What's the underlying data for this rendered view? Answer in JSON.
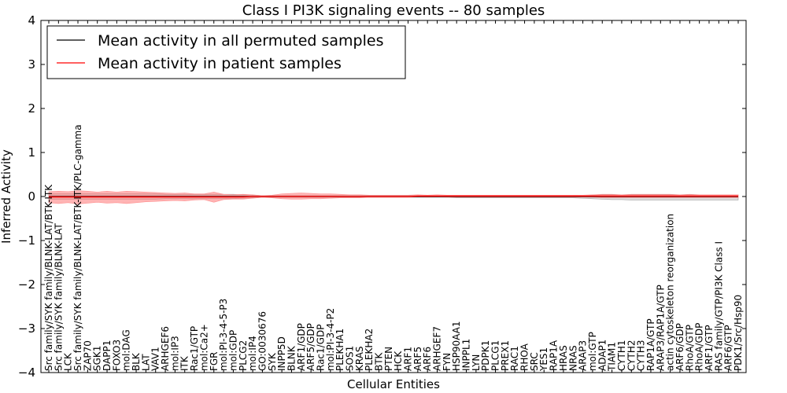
{
  "chart_data": {
    "type": "line",
    "title": "Class I PI3K signaling events -- 80 samples",
    "xlabel": "Cellular Entities",
    "ylabel": "Inferred Activity",
    "ylim": [
      -4,
      4
    ],
    "yticks": [
      -4,
      -3,
      -2,
      -1,
      0,
      1,
      2,
      3,
      4
    ],
    "ytick_labels": [
      "−4",
      "−3",
      "−2",
      "−1",
      "0",
      "1",
      "2",
      "3",
      "4"
    ],
    "legend": {
      "placement": "top-left",
      "entries": [
        {
          "label": "Mean activity in all permuted samples",
          "color": "#000000"
        },
        {
          "label": "Mean activity in patient samples",
          "color": "#ff0000"
        }
      ]
    },
    "categories": [
      "Src family/SYK family/BLNK-LAT/BTK-ITK",
      "Src family/SYK family/BLNK-LAT",
      "LCK",
      "Src family/SYK family/BLNK-LAT/BTK-ITK/PLC-gamma",
      "ZAP70",
      "SGK1",
      "DAPP1",
      "FOXO3",
      "mol:DAG",
      "BLK",
      "LAT",
      "VAV1",
      "ARHGEF6",
      "mol:IP3",
      "ITK",
      "Rac1/GTP",
      "mol:Ca2+",
      "FGR",
      "mol:PI-3-4-5-P3",
      "mol:GDP",
      "PLCG2",
      "mol:IP4",
      "GO:0030676",
      "SYK",
      "INPP5D",
      "BLNK",
      "ARF1/GDP",
      "ARF5/GDP",
      "Rac1/GDP",
      "mol:PI-3-4-P2",
      "PLEKHA1",
      "SOS1",
      "KRAS",
      "PLEKHA2",
      "BTK",
      "PTEN",
      "HCK",
      "ARF1",
      "ARF5",
      "ARF6",
      "ARHGEF7",
      "FYN",
      "HSP90AA1",
      "INPPL1",
      "LYN",
      "PDPK1",
      "PLCG1",
      "PREX1",
      "RAC1",
      "RHOA",
      "SRC",
      "YES1",
      "RAP1A",
      "HRAS",
      "NRAS",
      "ARAP3",
      "mol:GTP",
      "ADAP1",
      "TIAM1",
      "CYTH1",
      "CYTH2",
      "CYTH3",
      "RAP1A/GTP",
      "ARAP3/RAP1A/GTP",
      "actin cytoskeleton reorganization",
      "ARF6/GDP",
      "RhoA/GTP",
      "RhoA/GDP",
      "ARF1/GTP",
      "RAS family/GTP/PI3K Class I",
      "ARF6/GTP",
      "PDK1/Src/Hsp90"
    ],
    "series": [
      {
        "name": "Mean activity in all permuted samples",
        "color": "#000000",
        "values": [
          0,
          0,
          0,
          0,
          0,
          0,
          0,
          0,
          0,
          0,
          0,
          0,
          0,
          0,
          0,
          0,
          0,
          0,
          0,
          0,
          0,
          0,
          0,
          0,
          0,
          0,
          0,
          0,
          0,
          0,
          0,
          0,
          0,
          0,
          0,
          0,
          0,
          0,
          0,
          0,
          0,
          0,
          0,
          0,
          0,
          0,
          0,
          0,
          0,
          0,
          0,
          0,
          0,
          0,
          0,
          0,
          0,
          0,
          0,
          0,
          0,
          0,
          0,
          0,
          0,
          0,
          0,
          0,
          0,
          0,
          0,
          0
        ],
        "band_upper": [
          0.06,
          0.06,
          0.06,
          0.06,
          0.06,
          0.06,
          0.06,
          0.06,
          0.06,
          0.06,
          0.06,
          0.06,
          0.05,
          0.05,
          0.05,
          0.05,
          0.05,
          0.05,
          0.05,
          0.05,
          0.04,
          0.03,
          0.02,
          0.02,
          0.02,
          0.02,
          0.02,
          0.02,
          0.02,
          0.02,
          0.02,
          0.02,
          0.02,
          0.02,
          0.02,
          0.02,
          0.02,
          0.02,
          0.02,
          0.02,
          0.02,
          0.02,
          0.02,
          0.02,
          0.02,
          0.02,
          0.02,
          0.02,
          0.02,
          0.02,
          0.02,
          0.02,
          0.02,
          0.02,
          0.02,
          0.03,
          0.03,
          0.04,
          0.04,
          0.04,
          0.04,
          0.04,
          0.04,
          0.04,
          0.04,
          0.04,
          0.04,
          0.04,
          0.04,
          0.04,
          0.04,
          0.04
        ],
        "band_lower": [
          -0.06,
          -0.06,
          -0.06,
          -0.06,
          -0.06,
          -0.06,
          -0.06,
          -0.06,
          -0.06,
          -0.06,
          -0.06,
          -0.06,
          -0.05,
          -0.05,
          -0.05,
          -0.05,
          -0.05,
          -0.05,
          -0.05,
          -0.05,
          -0.04,
          -0.03,
          -0.02,
          -0.02,
          -0.02,
          -0.02,
          -0.02,
          -0.02,
          -0.02,
          -0.02,
          -0.02,
          -0.02,
          -0.02,
          -0.02,
          -0.02,
          -0.02,
          -0.02,
          -0.02,
          -0.02,
          -0.02,
          -0.02,
          -0.02,
          -0.03,
          -0.03,
          -0.03,
          -0.03,
          -0.03,
          -0.03,
          -0.03,
          -0.03,
          -0.03,
          -0.03,
          -0.03,
          -0.03,
          -0.03,
          -0.04,
          -0.05,
          -0.06,
          -0.07,
          -0.07,
          -0.08,
          -0.08,
          -0.08,
          -0.08,
          -0.08,
          -0.08,
          -0.08,
          -0.08,
          -0.08,
          -0.08,
          -0.08,
          -0.08
        ]
      },
      {
        "name": "Mean activity in patient samples",
        "color": "#ff0000",
        "values": [
          -0.01,
          -0.01,
          -0.01,
          -0.01,
          -0.01,
          -0.01,
          -0.01,
          -0.01,
          -0.01,
          -0.01,
          -0.01,
          -0.01,
          -0.01,
          -0.01,
          -0.01,
          -0.01,
          -0.01,
          -0.01,
          -0.01,
          -0.01,
          -0.01,
          0,
          0,
          0,
          0,
          0,
          0,
          0,
          0,
          0,
          0,
          0,
          0,
          0,
          0,
          0,
          0,
          0,
          0.01,
          0.01,
          0.01,
          0.01,
          0.01,
          0.01,
          0.01,
          0.01,
          0.01,
          0.01,
          0.01,
          0.01,
          0.01,
          0.01,
          0.01,
          0.01,
          0.01,
          0.01,
          0.01,
          0.01,
          0.01,
          0.01,
          0.01,
          0.01,
          0.01,
          0.01,
          0.01,
          0.01,
          0.01,
          0.01,
          0.01,
          0.01,
          0.01,
          0.01
        ],
        "band_upper": [
          0.11,
          0.12,
          0.11,
          0.13,
          0.12,
          0.1,
          0.12,
          0.1,
          0.12,
          0.11,
          0.1,
          0.09,
          0.08,
          0.07,
          0.08,
          0.06,
          0.06,
          0.1,
          0.05,
          0.04,
          0.05,
          0.04,
          0.02,
          0.03,
          0.06,
          0.07,
          0.08,
          0.07,
          0.06,
          0.06,
          0.05,
          0.04,
          0.04,
          0.03,
          0.03,
          0.03,
          0.03,
          0.03,
          0.04,
          0.03,
          0.04,
          0.03,
          0.03,
          0.03,
          0.03,
          0.03,
          0.03,
          0.03,
          0.03,
          0.03,
          0.03,
          0.03,
          0.03,
          0.03,
          0.03,
          0.03,
          0.04,
          0.05,
          0.05,
          0.04,
          0.05,
          0.05,
          0.05,
          0.05,
          0.05,
          0.04,
          0.05,
          0.04,
          0.04,
          0.04,
          0.04,
          0.04
        ],
        "band_lower": [
          -0.14,
          -0.16,
          -0.14,
          -0.17,
          -0.15,
          -0.13,
          -0.15,
          -0.14,
          -0.16,
          -0.14,
          -0.12,
          -0.11,
          -0.1,
          -0.09,
          -0.1,
          -0.08,
          -0.07,
          -0.13,
          -0.07,
          -0.06,
          -0.06,
          -0.04,
          -0.02,
          -0.03,
          -0.05,
          -0.06,
          -0.06,
          -0.05,
          -0.05,
          -0.04,
          -0.03,
          -0.03,
          -0.03,
          -0.02,
          -0.02,
          -0.02,
          -0.02,
          -0.02,
          -0.01,
          -0.02,
          -0.01,
          -0.02,
          -0.02,
          -0.02,
          -0.02,
          -0.02,
          -0.02,
          -0.02,
          -0.02,
          -0.02,
          -0.02,
          -0.02,
          -0.02,
          -0.02,
          -0.02,
          -0.02,
          -0.02,
          -0.03,
          -0.03,
          -0.03,
          -0.03,
          -0.03,
          -0.03,
          -0.03,
          -0.03,
          -0.03,
          -0.03,
          -0.03,
          -0.03,
          -0.03,
          -0.03,
          -0.03
        ]
      }
    ]
  }
}
